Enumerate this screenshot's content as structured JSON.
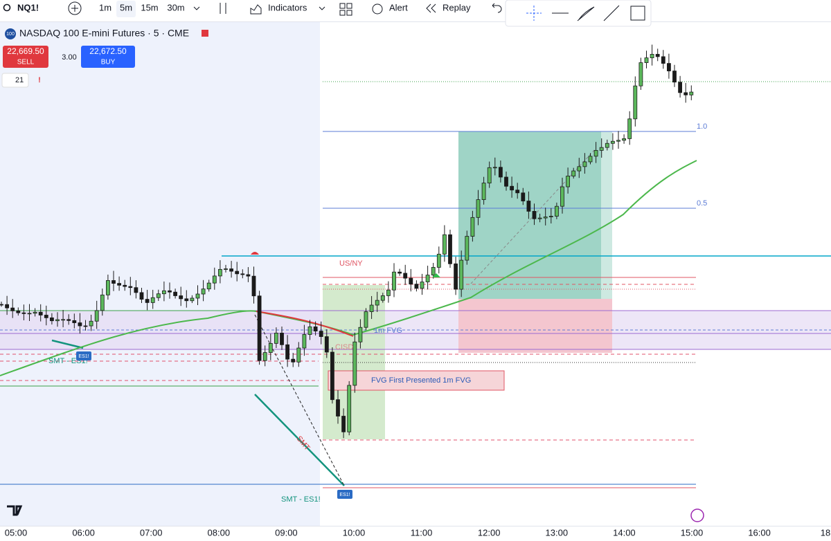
{
  "toolbar": {
    "symbol": "NQ1!",
    "intervals": [
      "1m",
      "5m",
      "15m",
      "30m"
    ],
    "indicators": "Indicators",
    "alert": "Alert",
    "replay": "Replay"
  },
  "legend": {
    "icon": "100",
    "title": "NASDAQ 100 E-mini Futures · 5 · CME",
    "sell_price": "22,669.50",
    "sell": "SELL",
    "spread": "3.00",
    "buy_price": "22,672.50",
    "buy": "BUY",
    "indicator_count": "21",
    "alert_mark": "!"
  },
  "annotations": {
    "fib_1": "1.0",
    "fib_05": "0.5",
    "session": "US/NY",
    "cisd": "CISD",
    "fvg": "1m FVG",
    "fvg_first": "FVG First Presented 1m FVG",
    "smt_line": "SMT",
    "smt_left": "SMT - ES1!",
    "smt_bottom": "SMT - ES1!",
    "badge_left": "ES1!",
    "badge_bottom": "ES1!"
  },
  "time_axis": [
    "05:00",
    "06:00",
    "07:00",
    "08:00",
    "09:00",
    "10:00",
    "11:00",
    "12:00",
    "13:00",
    "14:00",
    "15:00",
    "16:00",
    "18"
  ]
}
